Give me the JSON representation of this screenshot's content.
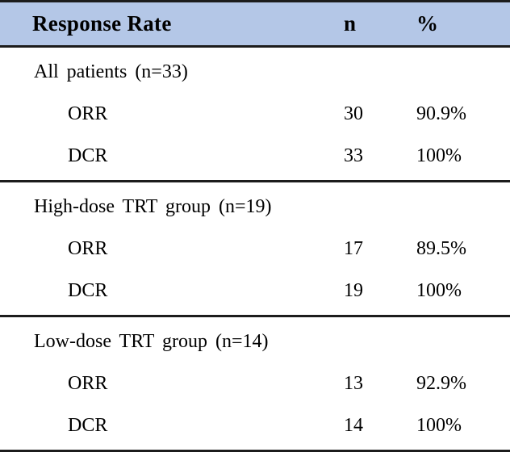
{
  "table": {
    "header": {
      "label": "Response Rate",
      "n": "n",
      "pct": "%"
    },
    "sections": [
      {
        "title": "All patients (n=33)",
        "rows": [
          {
            "label": "ORR",
            "n": "30",
            "pct": "90.9%"
          },
          {
            "label": "DCR",
            "n": "33",
            "pct": "100%"
          }
        ]
      },
      {
        "title": "High-dose TRT group (n=19)",
        "rows": [
          {
            "label": "ORR",
            "n": "17",
            "pct": "89.5%"
          },
          {
            "label": "DCR",
            "n": "19",
            "pct": "100%"
          }
        ]
      },
      {
        "title": "Low-dose TRT group (n=14)",
        "rows": [
          {
            "label": "ORR",
            "n": "13",
            "pct": "92.9%"
          },
          {
            "label": "DCR",
            "n": "14",
            "pct": "100%"
          }
        ]
      }
    ]
  },
  "colors": {
    "header_background": "#b4c7e7",
    "rule_line": "#1c1c1c",
    "text": "#000000"
  },
  "chart_data": {
    "type": "table",
    "title": "Response Rate",
    "columns": [
      "Response Rate",
      "n",
      "%"
    ],
    "rows": [
      [
        "All patients (n=33)",
        null,
        null
      ],
      [
        "ORR",
        30,
        "90.9%"
      ],
      [
        "DCR",
        33,
        "100%"
      ],
      [
        "High-dose TRT group (n=19)",
        null,
        null
      ],
      [
        "ORR",
        17,
        "89.5%"
      ],
      [
        "DCR",
        19,
        "100%"
      ],
      [
        "Low-dose TRT group (n=14)",
        null,
        null
      ],
      [
        "ORR",
        13,
        "92.9%"
      ],
      [
        "DCR",
        14,
        "100%"
      ]
    ]
  }
}
